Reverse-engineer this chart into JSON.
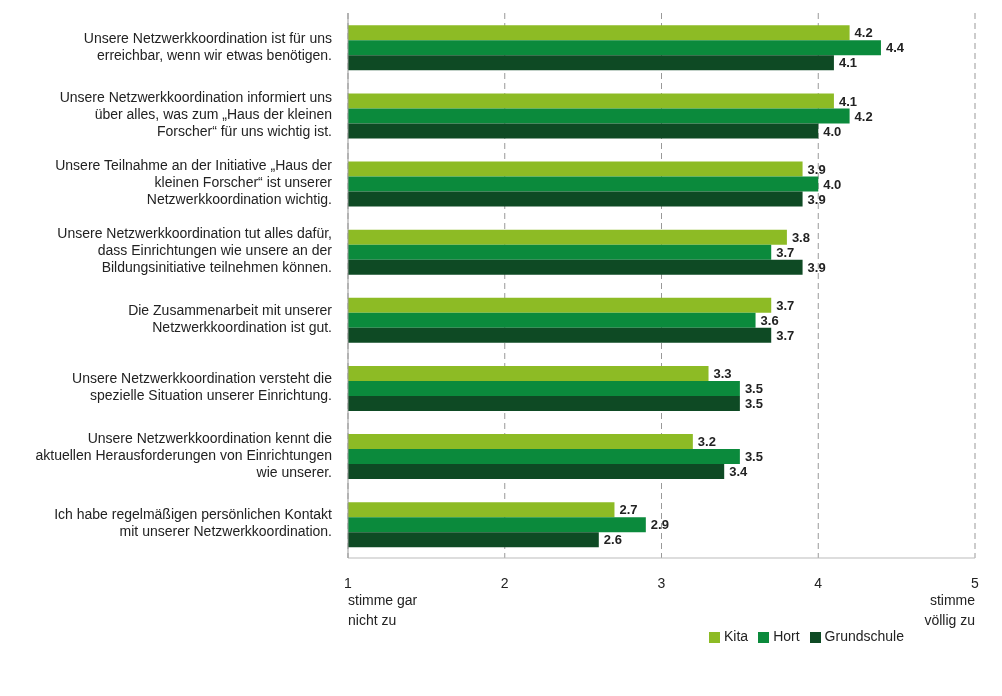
{
  "chart_data": {
    "type": "bar",
    "orientation": "horizontal",
    "categories": [
      "Unsere Netzwerkkoordination ist für uns erreichbar, wenn wir etwas benötigen.",
      "Unsere Netzwerkkoordination informiert uns über alles, was zum „Haus der kleinen Forscher“ für uns wichtig ist.",
      "Unsere Teilnahme an der Initiative „Haus der kleinen Forscher“ ist unserer Netzwerkkoordination wichtig.",
      "Unsere Netzwerkkoordination tut alles dafür, dass Einrichtungen wie unsere an der Bildungsinitiative teilnehmen können.",
      "Die Zusammenarbeit mit unserer Netzwerkkoordination ist gut.",
      "Unsere Netzwerkkoordination versteht die spezielle Situation unserer Einrichtung.",
      "Unsere Netzwerkkoordination kennt die aktuellen Herausforderungen von Einrichtungen wie unserer.",
      "Ich habe regelmäßigen persönlichen Kontakt mit unserer Netzwerkkoordination."
    ],
    "series": [
      {
        "name": "Kita",
        "color": "#8dbb25",
        "values": [
          4.2,
          4.1,
          3.9,
          3.8,
          3.7,
          3.3,
          3.2,
          2.7
        ],
        "value_labels": [
          "4.2",
          "4.1",
          "3.9",
          "3.8",
          "3.7",
          "3.3",
          "3.2",
          "2.7"
        ]
      },
      {
        "name": "Hort",
        "color": "#0b8a3c",
        "values": [
          4.4,
          4.2,
          4.0,
          3.7,
          3.6,
          3.5,
          3.5,
          2.9
        ],
        "value_labels": [
          "4.4",
          "4.2",
          "4.0",
          "3.7",
          "3.6",
          "3.5",
          "3.5",
          "2.9"
        ]
      },
      {
        "name": "Grundschule",
        "color": "#0e4a24",
        "values": [
          4.1,
          4.0,
          3.9,
          3.9,
          3.7,
          3.5,
          3.4,
          2.6
        ],
        "value_labels": [
          "4.1",
          "4.0",
          "3.9",
          "3.9",
          "3.7",
          "3.5",
          "3.4",
          "2.6"
        ]
      }
    ],
    "xlim": [
      1,
      5
    ],
    "xticks": [
      1,
      2,
      3,
      4,
      5
    ],
    "grid": "x",
    "legend": "bottom",
    "annotations": [
      "stimme gar nicht zu",
      "stimme völlig zu"
    ]
  }
}
